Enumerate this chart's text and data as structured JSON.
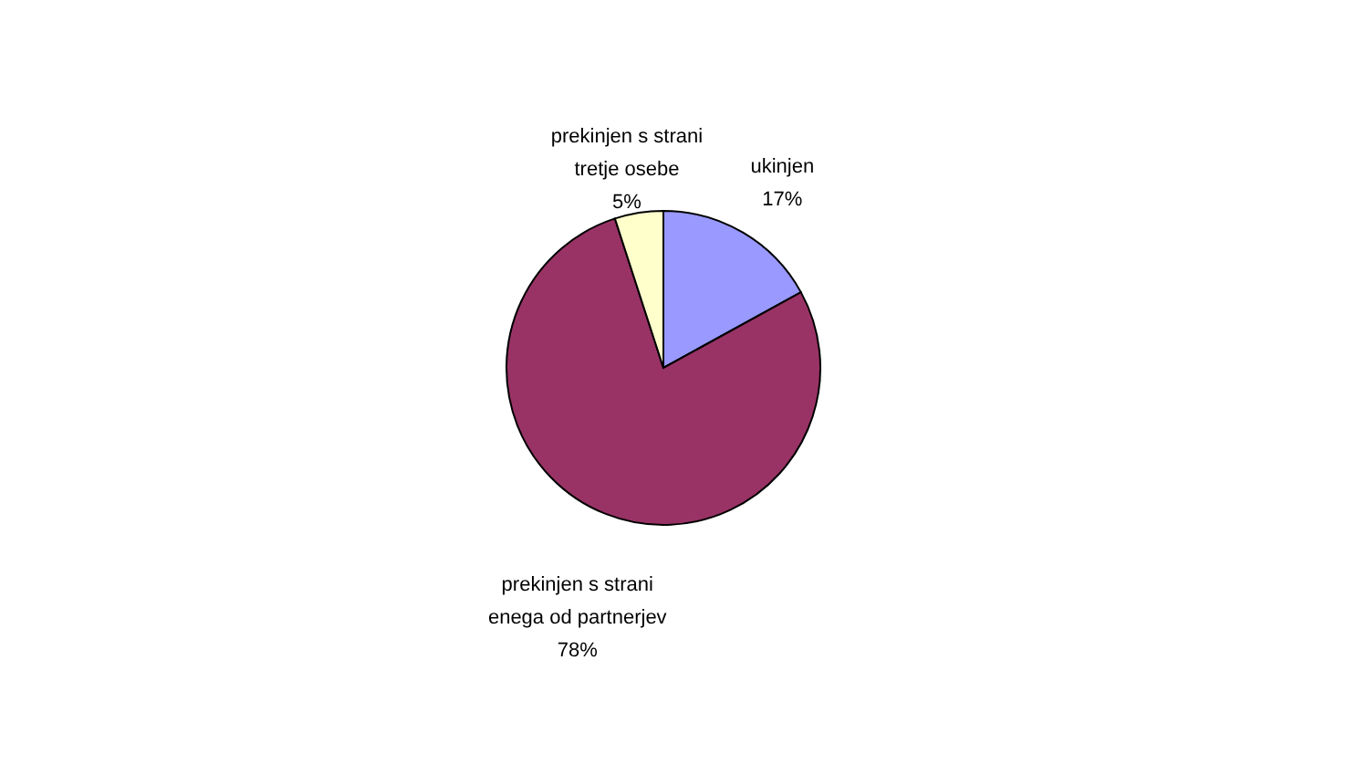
{
  "chart_data": {
    "type": "pie",
    "categories": [
      "ukinjen",
      "prekinjen s strani\nenega od partnerjev",
      "prekinjen s strani\ntretje osebe"
    ],
    "values": [
      17,
      78,
      5
    ],
    "value_labels": [
      "17%",
      "78%",
      "5%"
    ],
    "colors": [
      "#9999ff",
      "#993366",
      "#ffffcc"
    ],
    "legend": false
  }
}
